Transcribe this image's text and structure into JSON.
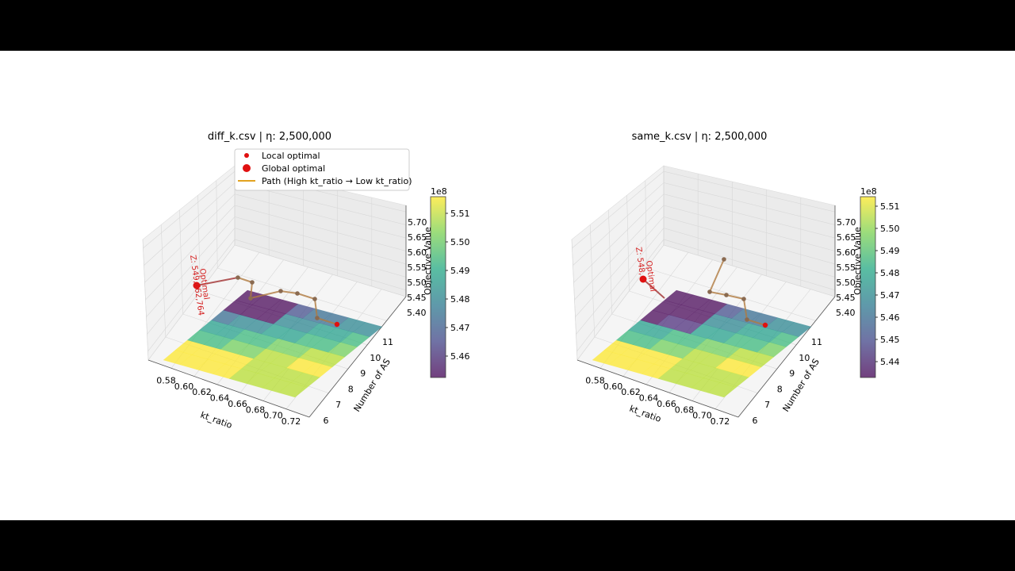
{
  "chart_data": [
    {
      "type": "surface3d",
      "title": "diff_k.csv | η: 2,500,000",
      "xlabel": "kt_ratio",
      "ylabel": "Number of AS",
      "zlabel": "Objective Value",
      "x_ticks": [
        "0.58",
        "0.60",
        "0.62",
        "0.64",
        "0.66",
        "0.68",
        "0.70",
        "0.72"
      ],
      "y_ticks": [
        "6",
        "7",
        "8",
        "9",
        "10",
        "11"
      ],
      "z_ticks": [
        "5.40",
        "5.45",
        "5.50",
        "5.55",
        "5.60",
        "5.65",
        "5.70"
      ],
      "colorbar": {
        "exponent": "1e8",
        "ticks": [
          "5.46",
          "5.47",
          "5.48",
          "5.49",
          "5.50",
          "5.51"
        ],
        "range": [
          5.453,
          5.515
        ]
      },
      "legend": {
        "placement": "top",
        "entries": [
          "Local optimal",
          "Global optimal",
          "Path (High kt_ratio → Low kt_ratio)"
        ]
      },
      "annotation": "Z: 549,662,764",
      "annotation2": "Optimal",
      "colors": {
        "path": "#e2a220",
        "optimal": "#e01010"
      }
    },
    {
      "type": "surface3d",
      "title": "same_k.csv | η: 2,500,000",
      "xlabel": "kt_ratio",
      "ylabel": "Number of AS",
      "zlabel": "Objective Value",
      "x_ticks": [
        "0.58",
        "0.60",
        "0.62",
        "0.64",
        "0.66",
        "0.68",
        "0.70",
        "0.72"
      ],
      "y_ticks": [
        "6",
        "7",
        "8",
        "9",
        "10",
        "11"
      ],
      "z_ticks": [
        "5.40",
        "5.45",
        "5.50",
        "5.55",
        "5.60",
        "5.65",
        "5.70"
      ],
      "colorbar": {
        "exponent": "1e8",
        "ticks": [
          "5.44",
          "5.45",
          "5.46",
          "5.47",
          "5.48",
          "5.49",
          "5.50",
          "5.51"
        ],
        "range": [
          5.433,
          5.515
        ]
      },
      "annotation": "Z: 548,",
      "annotation2": "Optimal",
      "colors": {
        "path": "#e2a220",
        "optimal": "#e01010"
      }
    }
  ]
}
